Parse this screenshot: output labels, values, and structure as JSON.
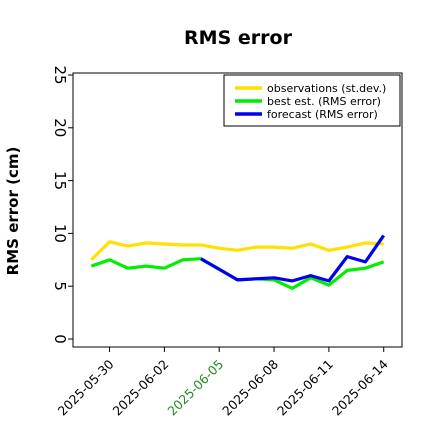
{
  "chart_data": {
    "type": "line",
    "title": "RMS error",
    "ylabel": "RMS error (cm)",
    "xlabel": "",
    "ylim": [
      0,
      25
    ],
    "yticks": [
      0,
      5,
      10,
      15,
      20,
      25
    ],
    "x": [
      "2025-05-29",
      "2025-05-30",
      "2025-05-31",
      "2025-06-01",
      "2025-06-02",
      "2025-06-03",
      "2025-06-04",
      "2025-06-05",
      "2025-06-06",
      "2025-06-07",
      "2025-06-08",
      "2025-06-09",
      "2025-06-10",
      "2025-06-11",
      "2025-06-12",
      "2025-06-13",
      "2025-06-14"
    ],
    "xlim": [
      "2025-05-28",
      "2025-06-15"
    ],
    "xticks": [
      {
        "date": "2025-05-30",
        "label": "2025-05-30",
        "color": "#000000"
      },
      {
        "date": "2025-06-02",
        "label": "2025-06-02",
        "color": "#000000"
      },
      {
        "date": "2025-06-05",
        "label": "2025-06-05",
        "color": "#228b22"
      },
      {
        "date": "2025-06-08",
        "label": "2025-06-08",
        "color": "#000000"
      },
      {
        "date": "2025-06-11",
        "label": "2025-06-11",
        "color": "#000000"
      },
      {
        "date": "2025-06-14",
        "label": "2025-06-14",
        "color": "#000000"
      }
    ],
    "grid": false,
    "legend_position": "top-right",
    "series": [
      {
        "name": "observations (st.dev.)",
        "color": "#ffe000",
        "values": [
          7.5,
          9.2,
          8.8,
          9.1,
          9.0,
          8.9,
          8.9,
          8.6,
          8.4,
          8.7,
          8.7,
          8.6,
          9.0,
          8.4,
          8.7,
          9.1,
          9.0
        ]
      },
      {
        "name": "best est. (RMS error)",
        "color": "#00ee00",
        "values": [
          6.9,
          7.5,
          6.7,
          6.9,
          6.7,
          7.5,
          7.6,
          6.6,
          5.6,
          5.7,
          5.6,
          4.8,
          5.8,
          5.1,
          6.5,
          6.7,
          7.3
        ]
      },
      {
        "name": "forecast (RMS error)",
        "color": "#0000ee",
        "x": [
          "2025-06-04",
          "2025-06-05",
          "2025-06-06",
          "2025-06-07",
          "2025-06-08",
          "2025-06-09",
          "2025-06-10",
          "2025-06-11",
          "2025-06-12",
          "2025-06-13",
          "2025-06-14"
        ],
        "values": [
          7.6,
          6.6,
          5.6,
          5.7,
          5.8,
          5.5,
          6.0,
          5.5,
          7.8,
          7.3,
          9.8
        ]
      }
    ]
  }
}
